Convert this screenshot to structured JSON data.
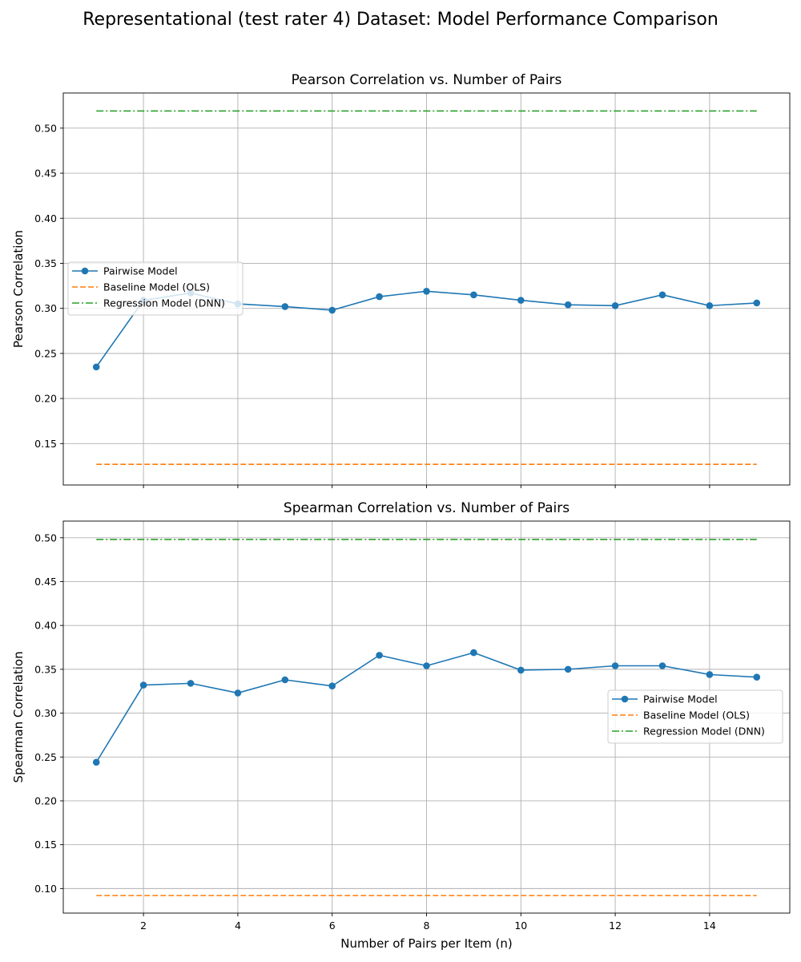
{
  "figure": {
    "title": "Representational (test rater 4) Dataset: Model Performance Comparison"
  },
  "colors": {
    "pairwise": "#1f77b4",
    "baseline": "#ff7f0e",
    "regression": "#2ca02c",
    "grid": "#b0b0b0"
  },
  "chart_data": [
    {
      "type": "line",
      "title": "Pearson Correlation vs. Number of Pairs",
      "xlabel": "",
      "ylabel": "Pearson Correlation",
      "xlim": [
        0.3,
        15.7
      ],
      "ylim": [
        0.104,
        0.539
      ],
      "xticks": [
        2,
        4,
        6,
        8,
        10,
        12,
        14
      ],
      "xtick_labels_visible": false,
      "yticks": [
        0.15,
        0.2,
        0.25,
        0.3,
        0.35,
        0.4,
        0.45,
        0.5
      ],
      "ytick_labels": [
        "0.15",
        "0.20",
        "0.25",
        "0.30",
        "0.35",
        "0.40",
        "0.45",
        "0.50"
      ],
      "grid": true,
      "legend": "center-left",
      "x": [
        1,
        2,
        3,
        4,
        5,
        6,
        7,
        8,
        9,
        10,
        11,
        12,
        13,
        14,
        15
      ],
      "series": [
        {
          "name": "Pairwise Model",
          "style": "solid-marker",
          "values": [
            0.235,
            0.309,
            0.317,
            0.305,
            0.302,
            0.298,
            0.313,
            0.319,
            0.315,
            0.309,
            0.304,
            0.303,
            0.315,
            0.303,
            0.306
          ]
        },
        {
          "name": "Baseline Model (OLS)",
          "style": "dashed",
          "values": [
            0.127,
            0.127,
            0.127,
            0.127,
            0.127,
            0.127,
            0.127,
            0.127,
            0.127,
            0.127,
            0.127,
            0.127,
            0.127,
            0.127,
            0.127
          ]
        },
        {
          "name": "Regression Model (DNN)",
          "style": "dashdot",
          "values": [
            0.519,
            0.519,
            0.519,
            0.519,
            0.519,
            0.519,
            0.519,
            0.519,
            0.519,
            0.519,
            0.519,
            0.519,
            0.519,
            0.519,
            0.519
          ]
        }
      ]
    },
    {
      "type": "line",
      "title": "Spearman Correlation vs. Number of Pairs",
      "xlabel": "Number of Pairs per Item (n)",
      "ylabel": "Spearman Correlation",
      "xlim": [
        0.3,
        15.7
      ],
      "ylim": [
        0.072,
        0.519
      ],
      "xticks": [
        2,
        4,
        6,
        8,
        10,
        12,
        14
      ],
      "xtick_labels": [
        "2",
        "4",
        "6",
        "8",
        "10",
        "12",
        "14"
      ],
      "xtick_labels_visible": true,
      "yticks": [
        0.1,
        0.15,
        0.2,
        0.25,
        0.3,
        0.35,
        0.4,
        0.45,
        0.5
      ],
      "ytick_labels": [
        "0.10",
        "0.15",
        "0.20",
        "0.25",
        "0.30",
        "0.35",
        "0.40",
        "0.45",
        "0.50"
      ],
      "grid": true,
      "legend": "center-right",
      "x": [
        1,
        2,
        3,
        4,
        5,
        6,
        7,
        8,
        9,
        10,
        11,
        12,
        13,
        14,
        15
      ],
      "series": [
        {
          "name": "Pairwise Model",
          "style": "solid-marker",
          "values": [
            0.244,
            0.332,
            0.334,
            0.323,
            0.338,
            0.331,
            0.366,
            0.354,
            0.369,
            0.349,
            0.35,
            0.354,
            0.354,
            0.344,
            0.341
          ]
        },
        {
          "name": "Baseline Model (OLS)",
          "style": "dashed",
          "values": [
            0.092,
            0.092,
            0.092,
            0.092,
            0.092,
            0.092,
            0.092,
            0.092,
            0.092,
            0.092,
            0.092,
            0.092,
            0.092,
            0.092,
            0.092
          ]
        },
        {
          "name": "Regression Model (DNN)",
          "style": "dashdot",
          "values": [
            0.498,
            0.498,
            0.498,
            0.498,
            0.498,
            0.498,
            0.498,
            0.498,
            0.498,
            0.498,
            0.498,
            0.498,
            0.498,
            0.498,
            0.498
          ]
        }
      ]
    }
  ]
}
